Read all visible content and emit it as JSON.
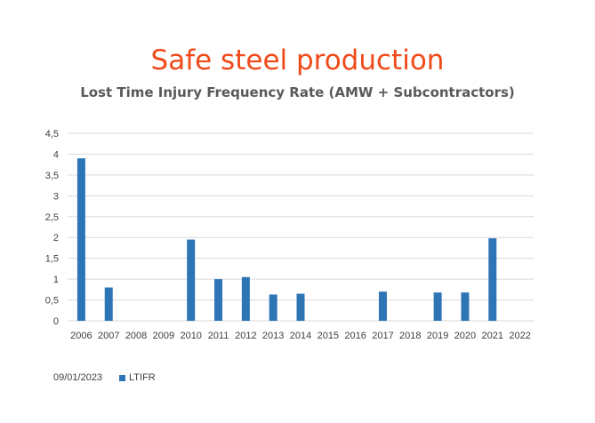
{
  "chart_data": {
    "type": "bar",
    "title": "Safe steel production",
    "subtitle": "Lost Time Injury Frequency Rate (AMW + Subcontractors)",
    "xlabel": "",
    "ylabel": "",
    "categories": [
      "2006",
      "2007",
      "2008",
      "2009",
      "2010",
      "2011",
      "2012",
      "2013",
      "2014",
      "2015",
      "2016",
      "2017",
      "2018",
      "2019",
      "2020",
      "2021",
      "2022"
    ],
    "series": [
      {
        "name": "LTIFR",
        "values": [
          3.9,
          0.8,
          null,
          null,
          1.95,
          1.0,
          1.05,
          0.63,
          0.65,
          null,
          null,
          0.7,
          null,
          0.68,
          0.68,
          1.98,
          null
        ]
      }
    ],
    "ylim": [
      0,
      4.5
    ],
    "yticks": [
      "0",
      "0,5",
      "1",
      "1,5",
      "2",
      "2,5",
      "3",
      "3,5",
      "4",
      "4,5"
    ],
    "ytick_values": [
      0,
      0.5,
      1,
      1.5,
      2,
      2.5,
      3,
      3.5,
      4,
      4.5
    ],
    "grid": true,
    "legend_position": "bottom-left",
    "bar_color": "#2e75b6",
    "grid_color": "#d9d9d9"
  },
  "footer": {
    "date": "09/01/2023"
  }
}
